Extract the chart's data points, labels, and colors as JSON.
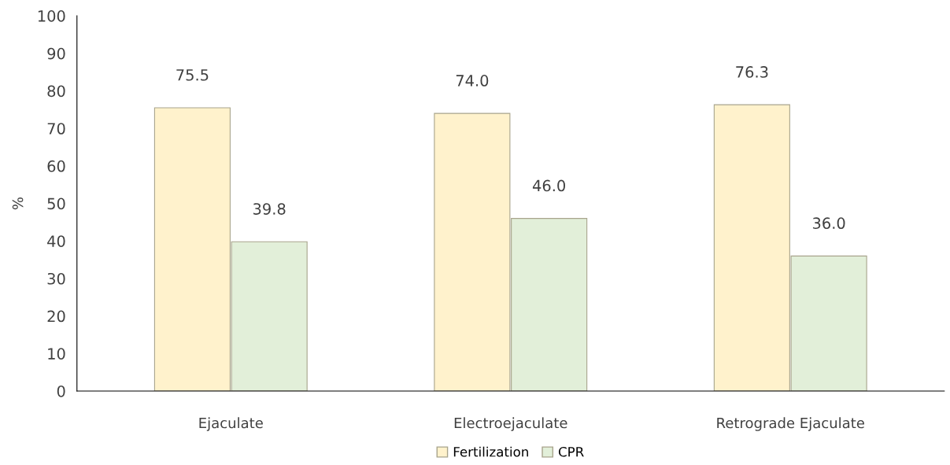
{
  "chart_data": {
    "type": "bar",
    "ylabel": "%",
    "categories": [
      "Ejaculate",
      "Electroejaculate",
      "Retrograde Ejaculate"
    ],
    "series": [
      {
        "name": "Fertilization",
        "color": "#fff2cc",
        "values": [
          75.5,
          74.0,
          76.3
        ],
        "value_labels": [
          "75.5",
          "74.0",
          "76.3"
        ]
      },
      {
        "name": "CPR",
        "color": "#e2efd9",
        "values": [
          39.8,
          46.0,
          36.0
        ],
        "value_labels": [
          "39.8",
          "46.0",
          "36.0"
        ]
      }
    ],
    "ylim": [
      0,
      100
    ],
    "yticks": [
      0,
      10,
      20,
      30,
      40,
      50,
      60,
      70,
      80,
      90,
      100
    ],
    "grid": false,
    "legend": "bottom"
  }
}
